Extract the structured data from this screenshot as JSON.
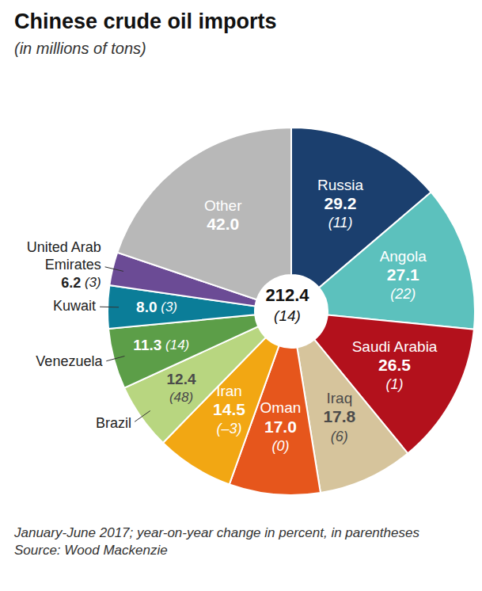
{
  "chart_data": {
    "type": "pie",
    "title": "Chinese crude oil imports",
    "subtitle": "(in millions of tons)",
    "categories": [
      "Russia",
      "Angola",
      "Saudi Arabia",
      "Iraq",
      "Oman",
      "Iran",
      "Brazil",
      "Venezuela",
      "Kuwait",
      "United Arab Emirates",
      "Other"
    ],
    "values": [
      29.2,
      27.1,
      26.5,
      17.8,
      17.0,
      14.5,
      12.4,
      11.3,
      8.0,
      6.2,
      42.0
    ],
    "value_labels": [
      "29.2",
      "27.1",
      "26.5",
      "17.8",
      "17.0",
      "14.5",
      "12.4",
      "11.3",
      "8.0",
      "6.2",
      "42.0"
    ],
    "yoy_change": [
      11,
      22,
      1,
      6,
      0,
      -3,
      48,
      14,
      3,
      3,
      null
    ],
    "yoy_change_labels": [
      "(11)",
      "(22)",
      "(1)",
      "(6)",
      "(0)",
      "(–3)",
      "(48)",
      "(14)",
      "(3)",
      "(3)",
      null
    ],
    "colors": [
      "#1b3f6e",
      "#5cc1bd",
      "#b3111c",
      "#d6c49c",
      "#e6561c",
      "#f2a713",
      "#b8d680",
      "#5c9e48",
      "#0b7d98",
      "#6b4b95",
      "#b8b8b8"
    ],
    "total": 212.4,
    "total_change": 14,
    "total_change_label": "(14)",
    "data_labels": true,
    "note": "January-June 2017; year-on-year change in percent, in parentheses",
    "source": "Source: Wood Mackenzie"
  }
}
